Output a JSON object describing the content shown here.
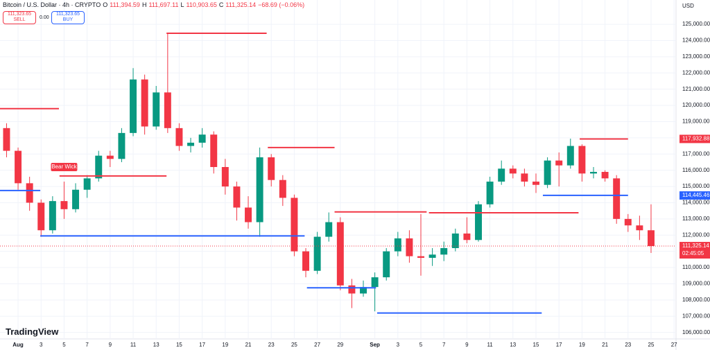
{
  "header": {
    "symbol": "Bitcoin / U.S. Dollar · 4h · CRYPTO",
    "o_label": "O",
    "open": "111,394.59",
    "h_label": "H",
    "high": "111,697.11",
    "l_label": "L",
    "low": "110,903.65",
    "c_label": "C",
    "close": "111,325.14",
    "change": "−68.69 (−0.06%)"
  },
  "order_panel": {
    "sell_price": "111,323.65",
    "sell": "SELL",
    "spread": "0.00",
    "buy_price": "111,323.65",
    "buy": "BUY"
  },
  "currency": "USD",
  "brand": "TradingView",
  "chart_data": {
    "type": "candlestick",
    "up_color": "#089981",
    "down_color": "#f23645",
    "grid": true,
    "x": [
      -1,
      0,
      1,
      2,
      3,
      4,
      5,
      6,
      7,
      8,
      9,
      10,
      11,
      12,
      13,
      14,
      15,
      16,
      17,
      18,
      19,
      20,
      21,
      22,
      23,
      24,
      25,
      26,
      27,
      28,
      29,
      30,
      31,
      32,
      33,
      34,
      35,
      36,
      37,
      38,
      39,
      40,
      41,
      42,
      43,
      44,
      45,
      46,
      47,
      48,
      49,
      50,
      51,
      52,
      53,
      54,
      55
    ],
    "open": [
      118600,
      117200,
      115200,
      114000,
      112300,
      114100,
      113600,
      114800,
      115500,
      116900,
      116700,
      118300,
      121600,
      118700,
      120800,
      118600,
      117500,
      117700,
      118200,
      116200,
      115000,
      113700,
      112800,
      116800,
      115400,
      114300,
      111000,
      109800,
      111900,
      112800,
      108900,
      108400,
      108800,
      109400,
      111000,
      111800,
      110700,
      110600,
      110800,
      111200,
      112100,
      111700,
      113900,
      115300,
      116100,
      115800,
      115300,
      115100,
      116600,
      116300,
      117500,
      115800,
      115900,
      115500,
      113000,
      112600,
      112300
    ],
    "high": [
      118900,
      117400,
      115600,
      114200,
      114400,
      115300,
      115200,
      115700,
      117200,
      117200,
      118600,
      122300,
      121900,
      121200,
      124450,
      118900,
      118000,
      118600,
      118400,
      116700,
      115300,
      114400,
      117400,
      117000,
      115700,
      114500,
      111200,
      112200,
      113400,
      113100,
      109300,
      109200,
      109700,
      111200,
      112200,
      112300,
      113300,
      111200,
      111600,
      112400,
      113100,
      114100,
      115600,
      116600,
      116300,
      116100,
      115800,
      116800,
      117100,
      117950,
      117600,
      116200,
      116000,
      115700,
      113300,
      113200,
      113900
    ],
    "low": [
      116800,
      114800,
      113500,
      111900,
      112100,
      113000,
      113400,
      114300,
      115300,
      116200,
      116500,
      118100,
      118200,
      118500,
      118300,
      117200,
      117100,
      117400,
      115800,
      114500,
      112900,
      112400,
      111900,
      115000,
      113800,
      110700,
      109400,
      109600,
      111600,
      108600,
      107500,
      108200,
      107300,
      109200,
      110700,
      110300,
      109500,
      110100,
      110400,
      111000,
      111500,
      111600,
      113700,
      115100,
      115500,
      115000,
      114600,
      114900,
      115000,
      116100,
      115300,
      115500,
      115300,
      112700,
      112200,
      111700,
      110900
    ],
    "close": [
      117200,
      115200,
      114000,
      112300,
      114100,
      113600,
      114800,
      115500,
      116900,
      116700,
      118300,
      121600,
      118700,
      120800,
      118600,
      117500,
      117700,
      118200,
      116200,
      115000,
      113700,
      112800,
      116800,
      115400,
      114300,
      111000,
      109800,
      111900,
      112800,
      108900,
      108400,
      108800,
      109400,
      111000,
      111800,
      110700,
      110600,
      110800,
      111200,
      112100,
      111700,
      113900,
      115300,
      116100,
      115800,
      115300,
      115100,
      116600,
      116300,
      117500,
      115800,
      115900,
      115500,
      113000,
      112600,
      112300,
      111325
    ],
    "xlim": [
      -1.57,
      57.17
    ],
    "ylim": [
      105600,
      126500
    ],
    "xticks": [
      {
        "value": 0,
        "label": "Aug"
      },
      {
        "value": 2,
        "label": "3"
      },
      {
        "value": 4,
        "label": "5"
      },
      {
        "value": 6,
        "label": "7"
      },
      {
        "value": 8,
        "label": "9"
      },
      {
        "value": 10,
        "label": "11"
      },
      {
        "value": 12,
        "label": "13"
      },
      {
        "value": 14,
        "label": "15"
      },
      {
        "value": 16,
        "label": "17"
      },
      {
        "value": 18,
        "label": "19"
      },
      {
        "value": 20,
        "label": "21"
      },
      {
        "value": 22,
        "label": "23"
      },
      {
        "value": 24,
        "label": "25"
      },
      {
        "value": 26,
        "label": "27"
      },
      {
        "value": 28,
        "label": "29"
      },
      {
        "value": 31,
        "label": "Sep"
      },
      {
        "value": 33,
        "label": "3"
      },
      {
        "value": 35,
        "label": "5"
      },
      {
        "value": 37,
        "label": "7"
      },
      {
        "value": 39,
        "label": "9"
      },
      {
        "value": 41,
        "label": "11"
      },
      {
        "value": 43,
        "label": "13"
      },
      {
        "value": 45,
        "label": "15"
      },
      {
        "value": 47,
        "label": "17"
      },
      {
        "value": 49,
        "label": "19"
      },
      {
        "value": 51,
        "label": "21"
      },
      {
        "value": 53,
        "label": "23"
      },
      {
        "value": 55,
        "label": "25"
      },
      {
        "value": 57,
        "label": "27"
      }
    ],
    "yticks": [
      {
        "value": 106000,
        "label": "106,000.00"
      },
      {
        "value": 107000,
        "label": "107,000.00"
      },
      {
        "value": 108000,
        "label": "108,000.00"
      },
      {
        "value": 109000,
        "label": "109,000.00"
      },
      {
        "value": 110000,
        "label": "110,000.00"
      },
      {
        "value": 111000,
        "label": "111,000.00"
      },
      {
        "value": 112000,
        "label": "112,000.00"
      },
      {
        "value": 113000,
        "label": "113,000.00"
      },
      {
        "value": 114000,
        "label": "114,000.00"
      },
      {
        "value": 115000,
        "label": "115,000.00"
      },
      {
        "value": 116000,
        "label": "116,000.00"
      },
      {
        "value": 117000,
        "label": "117,000.00"
      },
      {
        "value": 118000,
        "label": "118,000.00"
      },
      {
        "value": 119000,
        "label": "119,000.00"
      },
      {
        "value": 120000,
        "label": "120,000.00"
      },
      {
        "value": 121000,
        "label": "121,000.00"
      },
      {
        "value": 122000,
        "label": "122,000.00"
      },
      {
        "value": 123000,
        "label": "123,000.00"
      },
      {
        "value": 124000,
        "label": "124,000.00"
      },
      {
        "value": 125000,
        "label": "125,000.00"
      }
    ],
    "levels": [
      {
        "price": 119800,
        "start": -1.57,
        "end": 3.55,
        "color": "#f23645"
      },
      {
        "price": 124450,
        "start": 12.9,
        "end": 21.6,
        "color": "#f23645"
      },
      {
        "price": 115650,
        "start": 3.6,
        "end": 12.9,
        "color": "#f23645"
      },
      {
        "price": 117400,
        "start": 21.7,
        "end": 27.5,
        "color": "#f23645"
      },
      {
        "price": 113430,
        "start": 27.5,
        "end": 35.5,
        "color": "#f23645"
      },
      {
        "price": 113380,
        "start": 35.7,
        "end": 48.7,
        "color": "#f23645"
      },
      {
        "price": 117930,
        "start": 48.8,
        "end": 53,
        "color": "#f23645"
      },
      {
        "price": 114750,
        "start": -1.57,
        "end": 1.93,
        "color": "#2962ff"
      },
      {
        "price": 111950,
        "start": 1.93,
        "end": 24.9,
        "color": "#2962ff"
      },
      {
        "price": 108750,
        "start": 25.1,
        "end": 31.1,
        "color": "#2962ff"
      },
      {
        "price": 107200,
        "start": 31.2,
        "end": 45.5,
        "color": "#2962ff"
      },
      {
        "price": 114450,
        "start": 45.6,
        "end": 53,
        "color": "#2962ff"
      }
    ],
    "annotation": {
      "text": "Bear Wick",
      "x": 4,
      "price": 116200
    },
    "price_tags": [
      {
        "value": 117932.88,
        "label": "117,932.88",
        "color": "#f23645"
      },
      {
        "value": 114445.46,
        "label": "114,445.46",
        "color": "#2962ff"
      },
      {
        "value": 111325.14,
        "label": "111,325.14",
        "color": "#f23645"
      }
    ],
    "countdown": "02:45:05"
  }
}
